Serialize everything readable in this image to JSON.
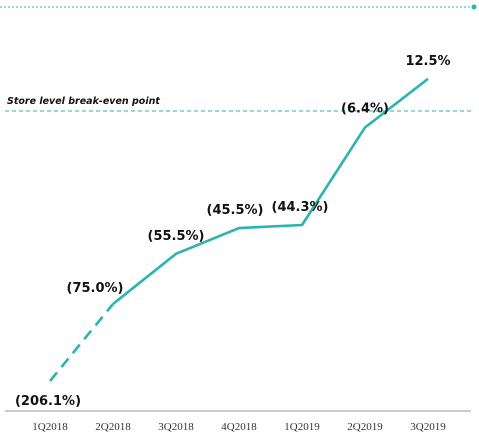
{
  "chart_data": {
    "type": "line",
    "categories": [
      "1Q2018",
      "2Q2018",
      "3Q2018",
      "4Q2018",
      "1Q2019",
      "2Q2019",
      "3Q2019"
    ],
    "values": [
      -206.1,
      -75.0,
      -55.5,
      -45.5,
      -44.3,
      -6.4,
      12.5
    ],
    "data_labels": [
      "(206.1%)",
      "(75.0%)",
      "(55.5%)",
      "(45.5%)",
      "(44.3%)",
      "(6.4%)",
      "12.5%"
    ],
    "dashed_segment": [
      "1Q2018",
      "2Q2018"
    ],
    "reference_line": {
      "label": "Store level break-even point",
      "value": 0
    },
    "colors": {
      "line": "#2bb3b1",
      "axis": "#999999",
      "text": "#111111"
    },
    "grid": false,
    "legend": "none"
  }
}
